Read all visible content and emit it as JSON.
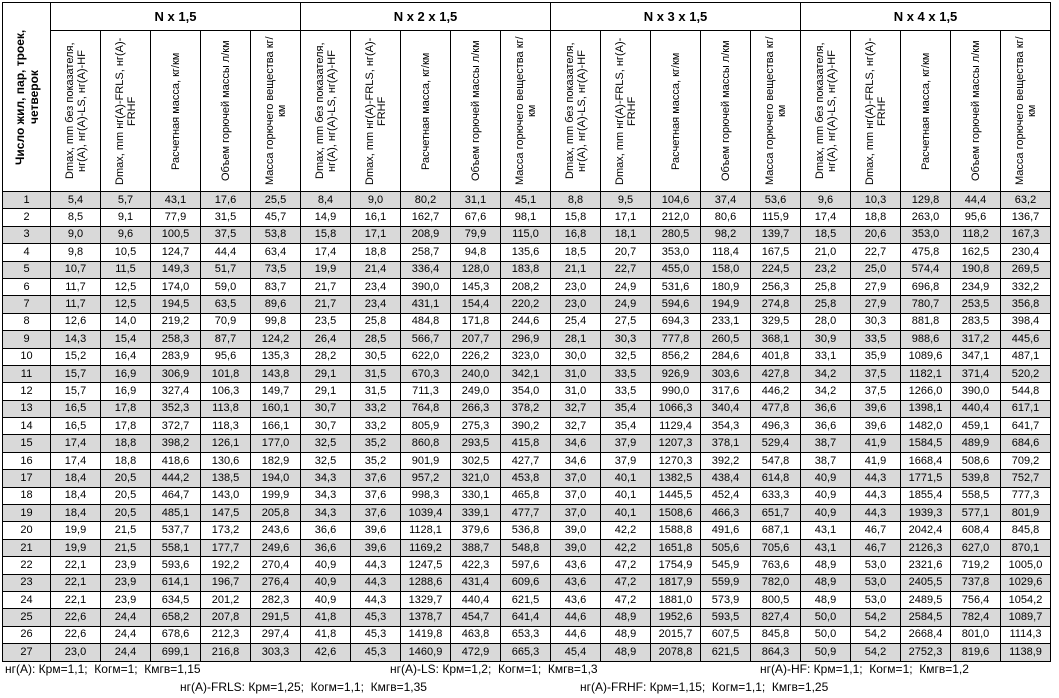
{
  "header": {
    "row_label": "Число жил, пар, троек, четверок",
    "groups": [
      "N x 1,5",
      "N x 2 x 1,5",
      "N x 3 x 1,5",
      "N x 4 x 1,5"
    ],
    "subcolumns": [
      "Dmax, mm без показателя, нг(А), нг(А)-LS, нг(А)-HF",
      "Dmax, mm нг(А)-FRLS, нг(А)-FRHF",
      "Расчетная масса, кг/км",
      "Объем горючей массы л/км",
      "Масса горючего вещества кг/км"
    ]
  },
  "table": {
    "rows": [
      [
        "1",
        "5,4",
        "5,7",
        "43,1",
        "17,6",
        "25,5",
        "8,4",
        "9,0",
        "80,2",
        "31,1",
        "45,1",
        "8,8",
        "9,5",
        "104,6",
        "37,4",
        "53,6",
        "9,6",
        "10,3",
        "129,8",
        "44,4",
        "63,2"
      ],
      [
        "2",
        "8,5",
        "9,1",
        "77,9",
        "31,5",
        "45,7",
        "14,9",
        "16,1",
        "162,7",
        "67,6",
        "98,1",
        "15,8",
        "17,1",
        "212,0",
        "80,6",
        "115,9",
        "17,4",
        "18,8",
        "263,0",
        "95,6",
        "136,7"
      ],
      [
        "3",
        "9,0",
        "9,6",
        "100,5",
        "37,5",
        "53,8",
        "15,8",
        "17,1",
        "208,9",
        "79,9",
        "115,0",
        "16,8",
        "18,1",
        "280,5",
        "98,2",
        "139,7",
        "18,5",
        "20,6",
        "353,0",
        "118,2",
        "167,3"
      ],
      [
        "4",
        "9,8",
        "10,5",
        "124,7",
        "44,4",
        "63,4",
        "17,4",
        "18,8",
        "258,7",
        "94,8",
        "135,6",
        "18,5",
        "20,7",
        "353,0",
        "118,4",
        "167,5",
        "21,0",
        "22,7",
        "475,8",
        "162,5",
        "230,4"
      ],
      [
        "5",
        "10,7",
        "11,5",
        "149,3",
        "51,7",
        "73,5",
        "19,9",
        "21,4",
        "336,4",
        "128,0",
        "183,8",
        "21,1",
        "22,7",
        "455,0",
        "158,0",
        "224,5",
        "23,2",
        "25,0",
        "574,4",
        "190,8",
        "269,5"
      ],
      [
        "6",
        "11,7",
        "12,5",
        "174,0",
        "59,0",
        "83,7",
        "21,7",
        "23,4",
        "390,0",
        "145,3",
        "208,2",
        "23,0",
        "24,9",
        "531,6",
        "180,9",
        "256,3",
        "25,8",
        "27,9",
        "696,8",
        "234,9",
        "332,2"
      ],
      [
        "7",
        "11,7",
        "12,5",
        "194,5",
        "63,5",
        "89,6",
        "21,7",
        "23,4",
        "431,1",
        "154,4",
        "220,2",
        "23,0",
        "24,9",
        "594,6",
        "194,9",
        "274,8",
        "25,8",
        "27,9",
        "780,7",
        "253,5",
        "356,8"
      ],
      [
        "8",
        "12,6",
        "14,0",
        "219,2",
        "70,9",
        "99,8",
        "23,5",
        "25,8",
        "484,8",
        "171,8",
        "244,6",
        "25,4",
        "27,5",
        "694,3",
        "233,1",
        "329,5",
        "28,0",
        "30,3",
        "881,8",
        "283,5",
        "398,4"
      ],
      [
        "9",
        "14,3",
        "15,4",
        "258,3",
        "87,7",
        "124,2",
        "26,4",
        "28,5",
        "566,7",
        "207,7",
        "296,9",
        "28,1",
        "30,3",
        "777,8",
        "260,5",
        "368,1",
        "30,9",
        "33,5",
        "988,6",
        "317,2",
        "445,6"
      ],
      [
        "10",
        "15,2",
        "16,4",
        "283,9",
        "95,6",
        "135,3",
        "28,2",
        "30,5",
        "622,0",
        "226,2",
        "323,0",
        "30,0",
        "32,5",
        "856,2",
        "284,6",
        "401,8",
        "33,1",
        "35,9",
        "1089,6",
        "347,1",
        "487,1"
      ],
      [
        "11",
        "15,7",
        "16,9",
        "306,9",
        "101,8",
        "143,8",
        "29,1",
        "31,5",
        "670,3",
        "240,0",
        "342,1",
        "31,0",
        "33,5",
        "926,9",
        "303,6",
        "427,8",
        "34,2",
        "37,5",
        "1182,1",
        "371,4",
        "520,2"
      ],
      [
        "12",
        "15,7",
        "16,9",
        "327,4",
        "106,3",
        "149,7",
        "29,1",
        "31,5",
        "711,3",
        "249,0",
        "354,0",
        "31,0",
        "33,5",
        "990,0",
        "317,6",
        "446,2",
        "34,2",
        "37,5",
        "1266,0",
        "390,0",
        "544,8"
      ],
      [
        "13",
        "16,5",
        "17,8",
        "352,3",
        "113,8",
        "160,1",
        "30,7",
        "33,2",
        "764,8",
        "266,3",
        "378,2",
        "32,7",
        "35,4",
        "1066,3",
        "340,4",
        "477,8",
        "36,6",
        "39,6",
        "1398,1",
        "440,4",
        "617,1"
      ],
      [
        "14",
        "16,5",
        "17,8",
        "372,7",
        "118,3",
        "166,1",
        "30,7",
        "33,2",
        "805,9",
        "275,3",
        "390,2",
        "32,7",
        "35,4",
        "1129,4",
        "354,3",
        "496,3",
        "36,6",
        "39,6",
        "1482,0",
        "459,1",
        "641,7"
      ],
      [
        "15",
        "17,4",
        "18,8",
        "398,2",
        "126,1",
        "177,0",
        "32,5",
        "35,2",
        "860,8",
        "293,5",
        "415,8",
        "34,6",
        "37,9",
        "1207,3",
        "378,1",
        "529,4",
        "38,7",
        "41,9",
        "1584,5",
        "489,9",
        "684,6"
      ],
      [
        "16",
        "17,4",
        "18,8",
        "418,6",
        "130,6",
        "182,9",
        "32,5",
        "35,2",
        "901,9",
        "302,5",
        "427,7",
        "34,6",
        "37,9",
        "1270,3",
        "392,2",
        "547,8",
        "38,7",
        "41,9",
        "1668,4",
        "508,6",
        "709,2"
      ],
      [
        "17",
        "18,4",
        "20,5",
        "444,2",
        "138,5",
        "194,0",
        "34,3",
        "37,6",
        "957,2",
        "321,0",
        "453,8",
        "37,0",
        "40,1",
        "1382,5",
        "438,4",
        "614,8",
        "40,9",
        "44,3",
        "1771,5",
        "539,8",
        "752,7"
      ],
      [
        "18",
        "18,4",
        "20,5",
        "464,7",
        "143,0",
        "199,9",
        "34,3",
        "37,6",
        "998,3",
        "330,1",
        "465,8",
        "37,0",
        "40,1",
        "1445,5",
        "452,4",
        "633,3",
        "40,9",
        "44,3",
        "1855,4",
        "558,5",
        "777,3"
      ],
      [
        "19",
        "18,4",
        "20,5",
        "485,1",
        "147,5",
        "205,8",
        "34,3",
        "37,6",
        "1039,4",
        "339,1",
        "477,7",
        "37,0",
        "40,1",
        "1508,6",
        "466,3",
        "651,7",
        "40,9",
        "44,3",
        "1939,3",
        "577,1",
        "801,9"
      ],
      [
        "20",
        "19,9",
        "21,5",
        "537,7",
        "173,2",
        "243,6",
        "36,6",
        "39,6",
        "1128,1",
        "379,6",
        "536,8",
        "39,0",
        "42,2",
        "1588,8",
        "491,6",
        "687,1",
        "43,1",
        "46,7",
        "2042,4",
        "608,4",
        "845,8"
      ],
      [
        "21",
        "19,9",
        "21,5",
        "558,1",
        "177,7",
        "249,6",
        "36,6",
        "39,6",
        "1169,2",
        "388,7",
        "548,8",
        "39,0",
        "42,2",
        "1651,8",
        "505,6",
        "705,6",
        "43,1",
        "46,7",
        "2126,3",
        "627,0",
        "870,1"
      ],
      [
        "22",
        "22,1",
        "23,9",
        "593,6",
        "192,2",
        "270,4",
        "40,9",
        "44,3",
        "1247,5",
        "422,3",
        "597,6",
        "43,6",
        "47,2",
        "1754,9",
        "545,9",
        "763,6",
        "48,9",
        "53,0",
        "2321,6",
        "719,2",
        "1005,0"
      ],
      [
        "23",
        "22,1",
        "23,9",
        "614,1",
        "196,7",
        "276,4",
        "40,9",
        "44,3",
        "1288,6",
        "431,4",
        "609,6",
        "43,6",
        "47,2",
        "1817,9",
        "559,9",
        "782,0",
        "48,9",
        "53,0",
        "2405,5",
        "737,8",
        "1029,6"
      ],
      [
        "24",
        "22,1",
        "23,9",
        "634,5",
        "201,2",
        "282,3",
        "40,9",
        "44,3",
        "1329,7",
        "440,4",
        "621,5",
        "43,6",
        "47,2",
        "1881,0",
        "573,9",
        "800,5",
        "48,9",
        "53,0",
        "2489,5",
        "756,4",
        "1054,2"
      ],
      [
        "25",
        "22,6",
        "24,4",
        "658,2",
        "207,8",
        "291,5",
        "41,8",
        "45,3",
        "1378,7",
        "454,7",
        "641,4",
        "44,6",
        "48,9",
        "1952,6",
        "593,5",
        "827,4",
        "50,0",
        "54,2",
        "2584,5",
        "782,4",
        "1089,7"
      ],
      [
        "26",
        "22,6",
        "24,4",
        "678,6",
        "212,3",
        "297,4",
        "41,8",
        "45,3",
        "1419,8",
        "463,8",
        "653,3",
        "44,6",
        "48,9",
        "2015,7",
        "607,5",
        "845,8",
        "50,0",
        "54,2",
        "2668,4",
        "801,0",
        "1114,3"
      ],
      [
        "27",
        "23,0",
        "24,4",
        "699,1",
        "216,8",
        "303,3",
        "42,6",
        "45,3",
        "1460,9",
        "472,9",
        "665,3",
        "45,4",
        "48,9",
        "2078,8",
        "621,5",
        "864,3",
        "50,9",
        "54,2",
        "2752,3",
        "819,6",
        "1138,9"
      ]
    ]
  },
  "notes": {
    "line1": [
      "нг(А): Крм=1,1;  Когм=1;  Кмгв=1,15",
      "нг(А)-LS: Крм=1,2;  Когм=1;  Кмгв=1,3",
      "нг(А)-HF: Крм=1,1;  Когм=1;  Кмгв=1,2"
    ],
    "line2": [
      "нг(А)-FRLS: Крм=1,25;  Когм=1,1;  Кмгв=1,35",
      "нг(А)-FRHF: Крм=1,15;  Когм=1,1;  Кмгв=1,25"
    ]
  }
}
